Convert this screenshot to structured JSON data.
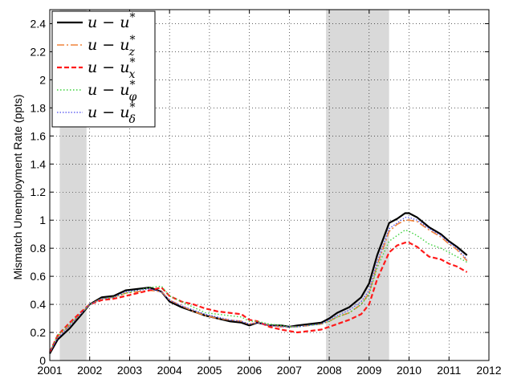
{
  "chart_data": {
    "type": "line",
    "title": "",
    "xlabel": "",
    "ylabel": "Mismatch Unemployment Rate (ppts)",
    "xlim": [
      2001,
      2012
    ],
    "ylim": [
      0,
      2.5
    ],
    "xticks": [
      "2001",
      "2002",
      "2003",
      "2004",
      "2005",
      "2006",
      "2007",
      "2008",
      "2009",
      "2010",
      "2011",
      "2012"
    ],
    "yticks": [
      "0",
      "0.2",
      "0.4",
      "0.6",
      "0.8",
      "1",
      "1.2",
      "1.4",
      "1.6",
      "1.8",
      "2",
      "2.2",
      "2.4"
    ],
    "grid": true,
    "legend_position": "top-left",
    "recession_shading": [
      [
        2001.25,
        2001.92
      ],
      [
        2007.92,
        2009.5
      ]
    ],
    "recession_color": "#d9d9d9",
    "series": [
      {
        "name": "u − u*",
        "legend_main": "u − u",
        "legend_sup": "*",
        "legend_sub": "",
        "color": "#000000",
        "dash": "",
        "width": 2.2,
        "x": [
          2001.0,
          2001.2,
          2001.5,
          2001.8,
          2002.0,
          2002.3,
          2002.6,
          2002.9,
          2003.2,
          2003.5,
          2003.8,
          2004.0,
          2004.3,
          2004.6,
          2004.9,
          2005.2,
          2005.5,
          2005.8,
          2006.0,
          2006.2,
          2006.5,
          2006.8,
          2007.0,
          2007.2,
          2007.5,
          2007.8,
          2008.0,
          2008.2,
          2008.5,
          2008.8,
          2009.0,
          2009.2,
          2009.5,
          2009.7,
          2009.9,
          2010.0,
          2010.2,
          2010.5,
          2010.8,
          2011.0,
          2011.2,
          2011.45
        ],
        "y": [
          0.05,
          0.15,
          0.23,
          0.33,
          0.4,
          0.45,
          0.46,
          0.5,
          0.51,
          0.52,
          0.49,
          0.42,
          0.38,
          0.35,
          0.32,
          0.3,
          0.28,
          0.27,
          0.25,
          0.27,
          0.25,
          0.25,
          0.24,
          0.25,
          0.26,
          0.27,
          0.3,
          0.34,
          0.38,
          0.45,
          0.55,
          0.75,
          0.98,
          1.01,
          1.05,
          1.05,
          1.02,
          0.95,
          0.9,
          0.85,
          0.81,
          0.75
        ]
      },
      {
        "name": "u − u*_z",
        "legend_main": "u − u",
        "legend_sup": "*",
        "legend_sub": "z",
        "color": "#f0843c",
        "dash": "9 3 2 3",
        "width": 1.6,
        "x": [
          2001.0,
          2001.2,
          2001.5,
          2001.8,
          2002.0,
          2002.3,
          2002.6,
          2002.9,
          2003.2,
          2003.5,
          2003.8,
          2004.0,
          2004.3,
          2004.6,
          2004.9,
          2005.2,
          2005.5,
          2005.8,
          2006.0,
          2006.2,
          2006.5,
          2006.8,
          2007.0,
          2007.2,
          2007.5,
          2007.8,
          2008.0,
          2008.2,
          2008.5,
          2008.8,
          2009.0,
          2009.2,
          2009.5,
          2009.7,
          2009.9,
          2010.0,
          2010.2,
          2010.5,
          2010.8,
          2011.0,
          2011.2,
          2011.45
        ],
        "y": [
          0.06,
          0.17,
          0.25,
          0.34,
          0.4,
          0.44,
          0.45,
          0.48,
          0.49,
          0.5,
          0.49,
          0.43,
          0.39,
          0.35,
          0.32,
          0.3,
          0.29,
          0.28,
          0.26,
          0.27,
          0.25,
          0.24,
          0.24,
          0.24,
          0.25,
          0.26,
          0.28,
          0.31,
          0.34,
          0.4,
          0.48,
          0.68,
          0.92,
          0.97,
          1.0,
          1.0,
          0.99,
          0.93,
          0.88,
          0.83,
          0.79,
          0.71
        ]
      },
      {
        "name": "u − u*_x",
        "legend_main": "u − u",
        "legend_sup": "*",
        "legend_sub": "x",
        "color": "#ff1a1a",
        "dash": "6 3",
        "width": 2.2,
        "x": [
          2001.0,
          2001.2,
          2001.5,
          2001.8,
          2002.0,
          2002.3,
          2002.6,
          2002.9,
          2003.2,
          2003.5,
          2003.8,
          2004.0,
          2004.3,
          2004.6,
          2004.9,
          2005.2,
          2005.5,
          2005.8,
          2006.0,
          2006.2,
          2006.5,
          2006.8,
          2007.0,
          2007.2,
          2007.5,
          2007.8,
          2008.0,
          2008.2,
          2008.5,
          2008.8,
          2009.0,
          2009.2,
          2009.5,
          2009.7,
          2009.9,
          2010.0,
          2010.2,
          2010.5,
          2010.8,
          2011.0,
          2011.2,
          2011.45
        ],
        "y": [
          0.06,
          0.18,
          0.27,
          0.35,
          0.4,
          0.43,
          0.44,
          0.46,
          0.48,
          0.5,
          0.52,
          0.46,
          0.42,
          0.4,
          0.37,
          0.35,
          0.34,
          0.33,
          0.29,
          0.28,
          0.24,
          0.22,
          0.21,
          0.2,
          0.21,
          0.22,
          0.24,
          0.26,
          0.29,
          0.33,
          0.4,
          0.58,
          0.77,
          0.82,
          0.84,
          0.84,
          0.81,
          0.74,
          0.72,
          0.69,
          0.67,
          0.63
        ]
      },
      {
        "name": "u − u*_φ",
        "legend_main": "u − u",
        "legend_sup": "*",
        "legend_sub": "φ",
        "color": "#3cd23c",
        "dash": "1.5 2.5",
        "width": 1.4,
        "x": [
          2001.0,
          2001.2,
          2001.5,
          2001.8,
          2002.0,
          2002.3,
          2002.6,
          2002.9,
          2003.2,
          2003.5,
          2003.8,
          2004.0,
          2004.3,
          2004.6,
          2004.9,
          2005.2,
          2005.5,
          2005.8,
          2006.0,
          2006.2,
          2006.5,
          2006.8,
          2007.0,
          2007.2,
          2007.5,
          2007.8,
          2008.0,
          2008.2,
          2008.5,
          2008.8,
          2009.0,
          2009.2,
          2009.5,
          2009.7,
          2009.9,
          2010.0,
          2010.2,
          2010.5,
          2010.8,
          2011.0,
          2011.2,
          2011.45
        ],
        "y": [
          0.06,
          0.18,
          0.26,
          0.34,
          0.4,
          0.44,
          0.45,
          0.48,
          0.5,
          0.52,
          0.53,
          0.46,
          0.42,
          0.38,
          0.34,
          0.33,
          0.32,
          0.31,
          0.28,
          0.28,
          0.26,
          0.25,
          0.24,
          0.24,
          0.25,
          0.26,
          0.28,
          0.31,
          0.34,
          0.4,
          0.47,
          0.66,
          0.85,
          0.89,
          0.93,
          0.92,
          0.89,
          0.83,
          0.8,
          0.77,
          0.74,
          0.7
        ]
      },
      {
        "name": "u − u*_δ",
        "legend_main": "u − u",
        "legend_sup": "*",
        "legend_sub": "δ",
        "color": "#4a4af0",
        "dash": "1.5 2",
        "width": 1.2,
        "x": [
          2001.0,
          2001.2,
          2001.5,
          2001.8,
          2002.0,
          2002.3,
          2002.6,
          2002.9,
          2003.2,
          2003.5,
          2003.8,
          2004.0,
          2004.3,
          2004.6,
          2004.9,
          2005.2,
          2005.5,
          2005.8,
          2006.0,
          2006.2,
          2006.5,
          2006.8,
          2007.0,
          2007.2,
          2007.5,
          2007.8,
          2008.0,
          2008.2,
          2008.5,
          2008.8,
          2009.0,
          2009.2,
          2009.5,
          2009.7,
          2009.9,
          2010.0,
          2010.2,
          2010.5,
          2010.8,
          2011.0,
          2011.2,
          2011.45
        ],
        "y": [
          0.06,
          0.16,
          0.25,
          0.34,
          0.4,
          0.44,
          0.45,
          0.49,
          0.5,
          0.51,
          0.49,
          0.43,
          0.39,
          0.36,
          0.33,
          0.31,
          0.29,
          0.28,
          0.26,
          0.27,
          0.25,
          0.24,
          0.24,
          0.24,
          0.25,
          0.26,
          0.29,
          0.32,
          0.36,
          0.42,
          0.5,
          0.7,
          0.94,
          0.98,
          1.02,
          1.02,
          1.0,
          0.94,
          0.89,
          0.84,
          0.8,
          0.72
        ]
      }
    ]
  }
}
